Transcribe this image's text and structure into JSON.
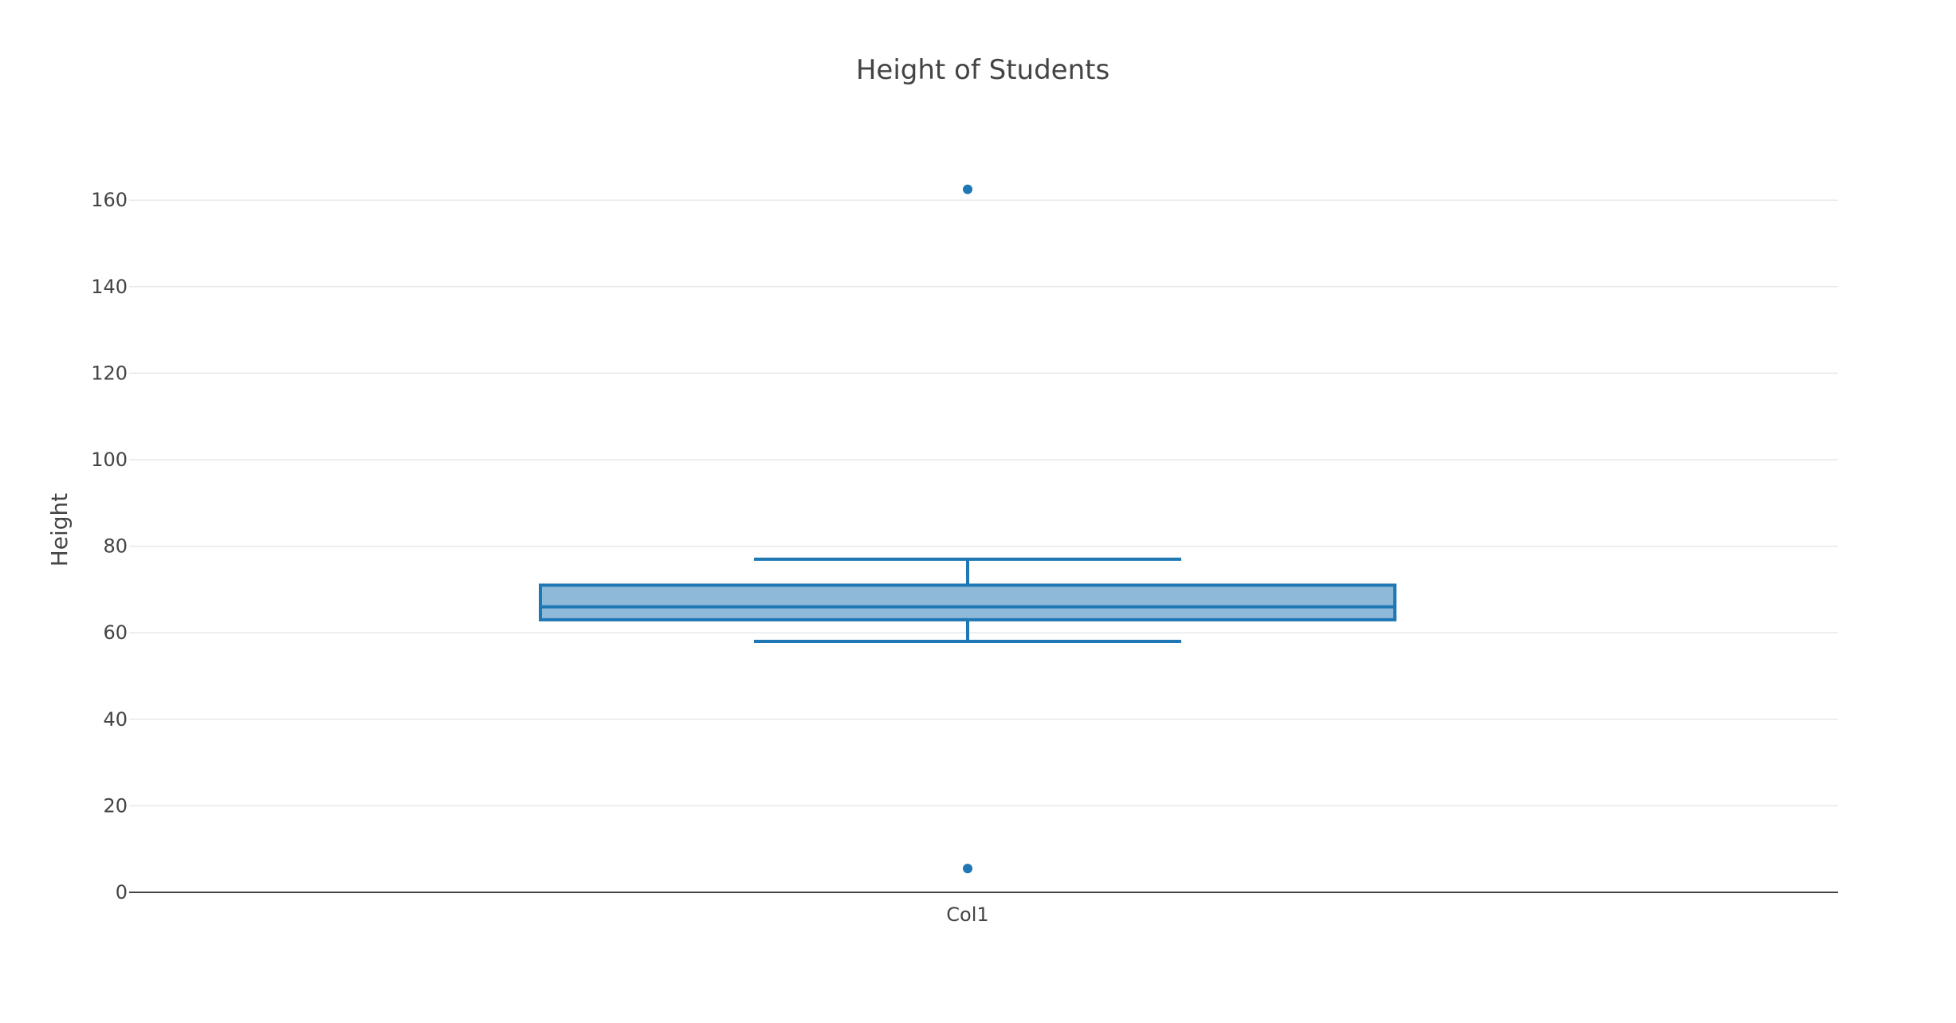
{
  "chart_data": {
    "type": "box",
    "title": "Height of Students",
    "xlabel": "",
    "ylabel": "Height",
    "categories": [
      "Col1"
    ],
    "ylim": [
      0,
      170
    ],
    "yticks": [
      0,
      20,
      40,
      60,
      80,
      100,
      120,
      140,
      160
    ],
    "grid": true,
    "box": {
      "category": "Col1",
      "lower_whisker": 58,
      "q1": 63,
      "median": 66,
      "q3": 71,
      "upper_whisker": 77,
      "outliers": [
        162.5,
        5.5
      ]
    },
    "colors": {
      "line": "#1f77b4",
      "fill": "#8fb9d9",
      "grid": "#e8e8e8",
      "axis": "#444444"
    }
  }
}
